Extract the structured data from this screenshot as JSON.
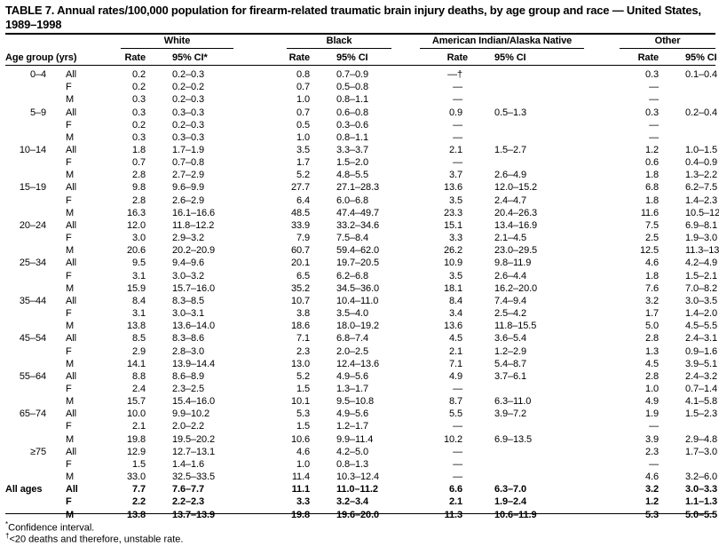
{
  "title": "TABLE 7. Annual rates/100,000 population for firearm-related traumatic brain injury deaths, by age group and race — United States, 1989–1998",
  "groups": [
    "White",
    "Black",
    "American Indian/Alaska Native",
    "Other"
  ],
  "subheaders": {
    "age_group": "Age group (yrs)",
    "rate": "Rate",
    "ci_white": "95% CI*",
    "ci": "95% CI"
  },
  "rows": [
    [
      "0–4",
      "All",
      "0.2",
      "0.2–0.3",
      "0.8",
      "0.7–0.9",
      "—†",
      "",
      "0.3",
      "0.1–0.4"
    ],
    [
      "",
      "F",
      "0.2",
      "0.2–0.2",
      "0.7",
      "0.5–0.8",
      "—",
      "",
      "—",
      ""
    ],
    [
      "",
      "M",
      "0.3",
      "0.2–0.3",
      "1.0",
      "0.8–1.1",
      "—",
      "",
      "—",
      ""
    ],
    [
      "5–9",
      "All",
      "0.3",
      "0.3–0.3",
      "0.7",
      "0.6–0.8",
      "0.9",
      "0.5–1.3",
      "0.3",
      "0.2–0.4"
    ],
    [
      "",
      "F",
      "0.2",
      "0.2–0.3",
      "0.5",
      "0.3–0.6",
      "—",
      "",
      "—",
      ""
    ],
    [
      "",
      "M",
      "0.3",
      "0.3–0.3",
      "1.0",
      "0.8–1.1",
      "—",
      "",
      "—",
      ""
    ],
    [
      "10–14",
      "All",
      "1.8",
      "1.7–1.9",
      "3.5",
      "3.3–3.7",
      "2.1",
      "1.5–2.7",
      "1.2",
      "1.0–1.5"
    ],
    [
      "",
      "F",
      "0.7",
      "0.7–0.8",
      "1.7",
      "1.5–2.0",
      "—",
      "",
      "0.6",
      "0.4–0.9"
    ],
    [
      "",
      "M",
      "2.8",
      "2.7–2.9",
      "5.2",
      "4.8–5.5",
      "3.7",
      "2.6–4.9",
      "1.8",
      "1.3–2.2"
    ],
    [
      "15–19",
      "All",
      "9.8",
      "9.6–9.9",
      "27.7",
      "27.1–28.3",
      "13.6",
      "12.0–15.2",
      "6.8",
      "6.2–7.5"
    ],
    [
      "",
      "F",
      "2.8",
      "2.6–2.9",
      "6.4",
      "6.0–6.8",
      "3.5",
      "2.4–4.7",
      "1.8",
      "1.4–2.3"
    ],
    [
      "",
      "M",
      "16.3",
      "16.1–16.6",
      "48.5",
      "47.4–49.7",
      "23.3",
      "20.4–26.3",
      "11.6",
      "10.5–12.8"
    ],
    [
      "20–24",
      "All",
      "12.0",
      "11.8–12.2",
      "33.9",
      "33.2–34.6",
      "15.1",
      "13.4–16.9",
      "7.5",
      "6.9–8.1"
    ],
    [
      "",
      "F",
      "3.0",
      "2.9–3.2",
      "7.9",
      "7.5–8.4",
      "3.3",
      "2.1–4.5",
      "2.5",
      "1.9–3.0"
    ],
    [
      "",
      "M",
      "20.6",
      "20.2–20.9",
      "60.7",
      "59.4–62.0",
      "26.2",
      "23.0–29.5",
      "12.5",
      "11.3–13.6"
    ],
    [
      "25–34",
      "All",
      "9.5",
      "9.4–9.6",
      "20.1",
      "19.7–20.5",
      "10.9",
      "9.8–11.9",
      "4.6",
      "4.2–4.9"
    ],
    [
      "",
      "F",
      "3.1",
      "3.0–3.2",
      "6.5",
      "6.2–6.8",
      "3.5",
      "2.6–4.4",
      "1.8",
      "1.5–2.1"
    ],
    [
      "",
      "M",
      "15.9",
      "15.7–16.0",
      "35.2",
      "34.5–36.0",
      "18.1",
      "16.2–20.0",
      "7.6",
      "7.0–8.2"
    ],
    [
      "35–44",
      "All",
      "8.4",
      "8.3–8.5",
      "10.7",
      "10.4–11.0",
      "8.4",
      "7.4–9.4",
      "3.2",
      "3.0–3.5"
    ],
    [
      "",
      "F",
      "3.1",
      "3.0–3.1",
      "3.8",
      "3.5–4.0",
      "3.4",
      "2.5–4.2",
      "1.7",
      "1.4–2.0"
    ],
    [
      "",
      "M",
      "13.8",
      "13.6–14.0",
      "18.6",
      "18.0–19.2",
      "13.6",
      "11.8–15.5",
      "5.0",
      "4.5–5.5"
    ],
    [
      "45–54",
      "All",
      "8.5",
      "8.3–8.6",
      "7.1",
      "6.8–7.4",
      "4.5",
      "3.6–5.4",
      "2.8",
      "2.4–3.1"
    ],
    [
      "",
      "F",
      "2.9",
      "2.8–3.0",
      "2.3",
      "2.0–2.5",
      "2.1",
      "1.2–2.9",
      "1.3",
      "0.9–1.6"
    ],
    [
      "",
      "M",
      "14.1",
      "13.9–14.4",
      "13.0",
      "12.4–13.6",
      "7.1",
      "5.4–8.7",
      "4.5",
      "3.9–5.1"
    ],
    [
      "55–64",
      "All",
      "8.8",
      "8.6–8.9",
      "5.2",
      "4.9–5.6",
      "4.9",
      "3.7–6.1",
      "2.8",
      "2.4–3.2"
    ],
    [
      "",
      "F",
      "2.4",
      "2.3–2.5",
      "1.5",
      "1.3–1.7",
      "—",
      "",
      "1.0",
      "0.7–1.4"
    ],
    [
      "",
      "M",
      "15.7",
      "15.4–16.0",
      "10.1",
      "9.5–10.8",
      "8.7",
      "6.3–11.0",
      "4.9",
      "4.1–5.8"
    ],
    [
      "65–74",
      "All",
      "10.0",
      "9.9–10.2",
      "5.3",
      "4.9–5.6",
      "5.5",
      "3.9–7.2",
      "1.9",
      "1.5–2.3"
    ],
    [
      "",
      "F",
      "2.1",
      "2.0–2.2",
      "1.5",
      "1.2–1.7",
      "—",
      "",
      "—",
      ""
    ],
    [
      "",
      "M",
      "19.8",
      "19.5–20.2",
      "10.6",
      "9.9–11.4",
      "10.2",
      "6.9–13.5",
      "3.9",
      "2.9–4.8"
    ],
    [
      "≥75",
      "All",
      "12.9",
      "12.7–13.1",
      "4.6",
      "4.2–5.0",
      "—",
      "",
      "2.3",
      "1.7–3.0"
    ],
    [
      "",
      "F",
      "1.5",
      "1.4–1.6",
      "1.0",
      "0.8–1.3",
      "—",
      "",
      "—",
      ""
    ],
    [
      "",
      "M",
      "33.0",
      "32.5–33.5",
      "11.4",
      "10.3–12.4",
      "—",
      "",
      "4.6",
      "3.2–6.0"
    ]
  ],
  "totals": [
    [
      "All ages",
      "All",
      "7.7",
      "7.6–7.7",
      "11.1",
      "11.0–11.2",
      "6.6",
      "6.3–7.0",
      "3.2",
      "3.0–3.3"
    ],
    [
      "",
      "F",
      "2.2",
      "2.2–2.3",
      "3.3",
      "3.2–3.4",
      "2.1",
      "1.9–2.4",
      "1.2",
      "1.1–1.3"
    ],
    [
      "",
      "M",
      "13.8",
      "13.7–13.9",
      "19.8",
      "19.6–20.0",
      "11.3",
      "10.6–11.9",
      "5.3",
      "5.0–5.5"
    ]
  ],
  "footnotes": {
    "star_mark": "*",
    "star": "Confidence interval.",
    "dagger_mark": "†",
    "dagger": "<20 deaths and therefore, unstable rate."
  }
}
